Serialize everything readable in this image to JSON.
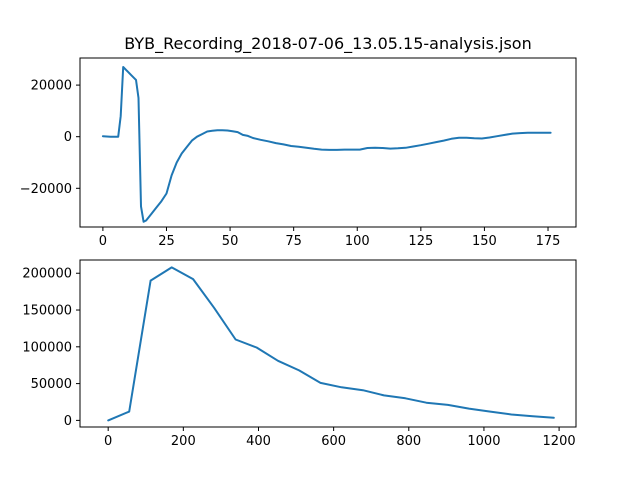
{
  "chart_data": [
    {
      "type": "line",
      "title": "BYB_Recording_2018-07-06_13.05.15-analysis.json",
      "xlabel": "",
      "ylabel": "",
      "xlim": [
        -9,
        186
      ],
      "ylim": [
        -35000,
        30500
      ],
      "xticks": [
        0,
        25,
        50,
        75,
        100,
        125,
        150,
        175
      ],
      "xtick_labels": [
        "0",
        "25",
        "50",
        "75",
        "100",
        "125",
        "150",
        "175"
      ],
      "yticks": [
        -20000,
        0,
        20000
      ],
      "ytick_labels": [
        "−20000",
        "0",
        "20000"
      ],
      "grid": false,
      "color": "#1f77b4",
      "series": [
        {
          "x": [
            0,
            3,
            6,
            7,
            8,
            11,
            13,
            14,
            15,
            16,
            17,
            19,
            21,
            23,
            25,
            27,
            29,
            31,
            33,
            35,
            37,
            39,
            41,
            43,
            45,
            47,
            49,
            51,
            53,
            55,
            57,
            59,
            62,
            65,
            68,
            71,
            74,
            77,
            80,
            83,
            86,
            89,
            92,
            95,
            98,
            101,
            104,
            107,
            110,
            113,
            116,
            119,
            122,
            125,
            128,
            131,
            134,
            137,
            140,
            143,
            146,
            149,
            152,
            155,
            158,
            161,
            164,
            167,
            170,
            173,
            176
          ],
          "y": [
            200,
            0,
            0,
            8000,
            27000,
            24000,
            22000,
            15000,
            -27000,
            -33000,
            -32500,
            -30000,
            -27500,
            -25000,
            -22000,
            -15000,
            -10000,
            -6500,
            -4000,
            -1500,
            0,
            1000,
            2000,
            2300,
            2500,
            2500,
            2400,
            2100,
            1800,
            700,
            300,
            -500,
            -1200,
            -1800,
            -2500,
            -3000,
            -3600,
            -3900,
            -4300,
            -4700,
            -5000,
            -5100,
            -5100,
            -5000,
            -5000,
            -5000,
            -4400,
            -4300,
            -4400,
            -4600,
            -4500,
            -4300,
            -3800,
            -3300,
            -2700,
            -2100,
            -1500,
            -800,
            -400,
            -400,
            -600,
            -700,
            -300,
            200,
            700,
            1200,
            1400,
            1500,
            1500,
            1500,
            1500
          ]
        }
      ]
    },
    {
      "type": "line",
      "title": "",
      "xlabel": "",
      "ylabel": "",
      "xlim": [
        -75,
        1245
      ],
      "ylim": [
        -9000,
        218000
      ],
      "xticks": [
        0,
        200,
        400,
        600,
        800,
        1000,
        1200
      ],
      "xtick_labels": [
        "0",
        "200",
        "400",
        "600",
        "800",
        "1000",
        "1200"
      ],
      "yticks": [
        0,
        50000,
        100000,
        150000,
        200000
      ],
      "ytick_labels": [
        "0",
        "50000",
        "100000",
        "150000",
        "200000"
      ],
      "grid": false,
      "color": "#1f77b4",
      "series": [
        {
          "x": [
            0,
            56,
            113,
            169,
            226,
            282,
            339,
            395,
            452,
            508,
            565,
            621,
            678,
            734,
            791,
            847,
            904,
            960,
            1017,
            1073,
            1130,
            1186
          ],
          "y": [
            0,
            12000,
            190000,
            208000,
            192000,
            153000,
            110000,
            99000,
            81000,
            68000,
            51000,
            45000,
            41000,
            34000,
            30000,
            24000,
            21000,
            16000,
            12000,
            8000,
            5500,
            3500
          ]
        }
      ]
    }
  ]
}
